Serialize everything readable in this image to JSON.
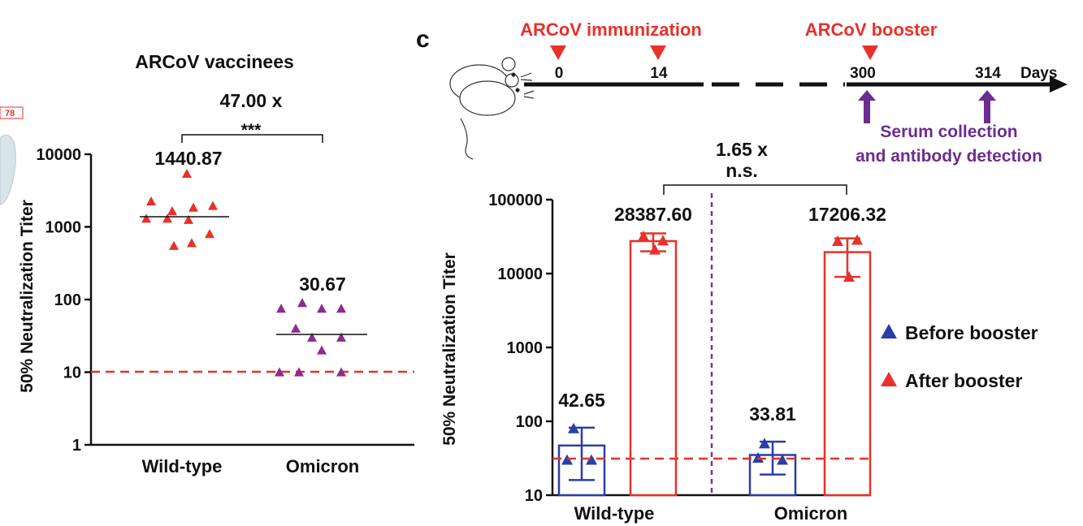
{
  "chart_data": [
    {
      "type": "scatter",
      "title": "ARCoV vaccinees",
      "ylabel": "50% Neutralization Titer",
      "yscale": "log",
      "ylim": [
        1,
        10000
      ],
      "yticks": [
        "1",
        "10",
        "100",
        "1000",
        "10000"
      ],
      "categories": [
        "Wild-type",
        "Omicron"
      ],
      "series": [
        {
          "category": "Wild-type",
          "marker": "triangle",
          "color": "#e8312a",
          "values": [
            5400,
            2250,
            1650,
            1850,
            1950,
            1300,
            1300,
            1250,
            800,
            550,
            600
          ],
          "summary": 1440.87,
          "summary_label": "1440.87"
        },
        {
          "category": "Omicron",
          "marker": "triangle",
          "color": "#8e2b8f",
          "values": [
            90,
            75,
            75,
            75,
            40,
            30,
            30,
            20,
            10,
            10,
            10
          ],
          "summary": 30.67,
          "summary_label": "30.67"
        }
      ],
      "threshold": 10,
      "threshold_color": "#e8312a",
      "comparison": {
        "fold": "47.00 x",
        "significance": "***"
      },
      "corner_fragment": "78"
    },
    {
      "type": "bar",
      "panel_label": "c",
      "ylabel": "50% Neutralization Titer",
      "yscale": "log",
      "ylim": [
        10,
        100000
      ],
      "yticks": [
        "10",
        "100",
        "1000",
        "10000",
        "100000"
      ],
      "categories": [
        "Wild-type",
        "Omicron"
      ],
      "series": [
        {
          "name": "Before booster",
          "color": "#2a3ea8",
          "values": [
            42.65,
            33.81
          ],
          "value_labels": [
            "42.65",
            "33.81"
          ],
          "bar_heights": [
            47,
            35
          ],
          "error_low": [
            16,
            19
          ],
          "error_high": [
            82,
            53
          ],
          "points": [
            [
              80,
              30,
              30
            ],
            [
              50,
              32,
              30
            ]
          ]
        },
        {
          "name": "After booster",
          "color": "#e8312a",
          "values": [
            28387.6,
            17206.32
          ],
          "value_labels": [
            "28387.60",
            "17206.32"
          ],
          "bar_heights": [
            27500,
            19500
          ],
          "error_low": [
            20000,
            9000
          ],
          "error_high": [
            35000,
            30000
          ],
          "points": [
            [
              32000,
              28000,
              21000
            ],
            [
              27500,
              28500,
              9000
            ]
          ]
        }
      ],
      "threshold": 30,
      "threshold_color": "#e8312a",
      "divider_color": "#8e2b8f",
      "comparison": {
        "fold": "1.65 x",
        "significance": "n.s."
      },
      "legend": [
        "Before booster",
        "After booster"
      ],
      "legend_position": "right"
    }
  ],
  "timeline": {
    "immunization_label": "ARCoV immunization",
    "booster_label": "ARCoV booster",
    "days": [
      "0",
      "14",
      "300",
      "314"
    ],
    "unit_label": "Days",
    "serum_line1": "Serum collection",
    "serum_line2": "and antibody detection",
    "red": "#e8312a",
    "purple": "#6b2d8f"
  }
}
